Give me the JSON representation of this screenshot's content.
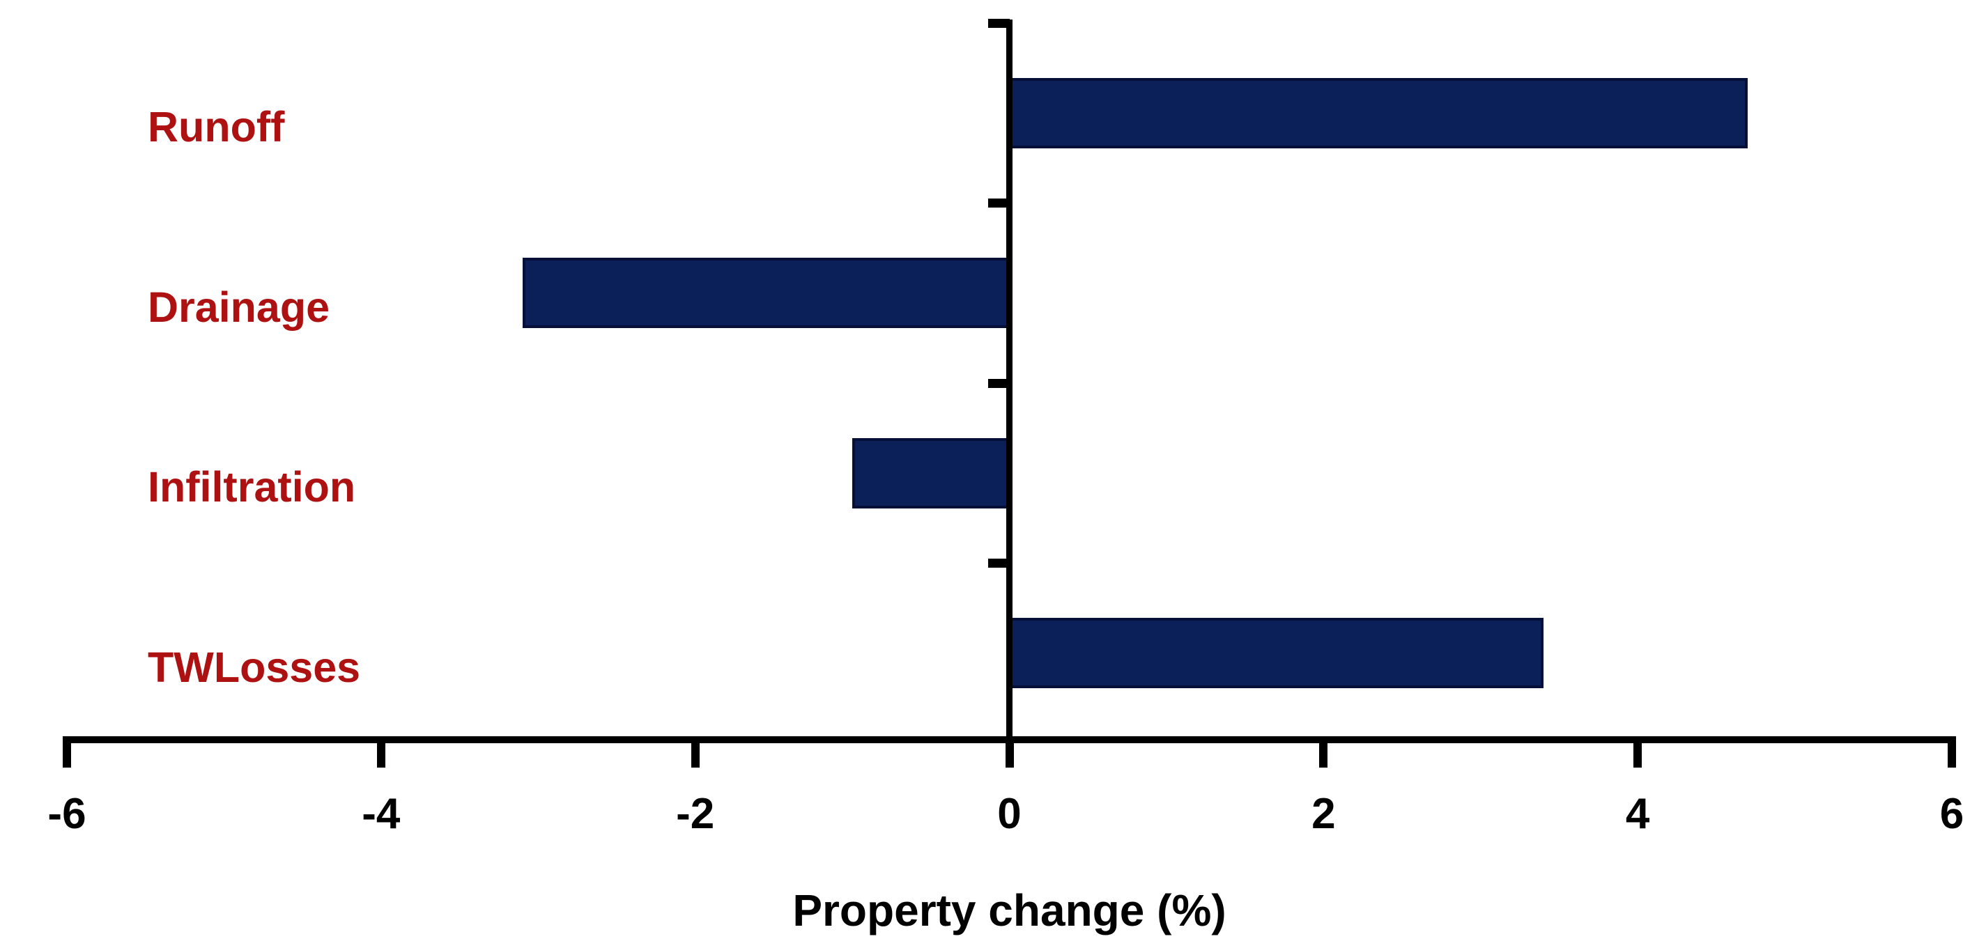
{
  "chart_data": {
    "type": "bar",
    "orientation": "horizontal",
    "title": "",
    "xlabel": "Property change (%)",
    "ylabel": "",
    "categories": [
      "Runoff",
      "Drainage",
      "Infiltration",
      "TWLosses"
    ],
    "values": [
      4.7,
      -3.1,
      -1.0,
      3.4
    ],
    "xlim": [
      -6,
      6
    ],
    "xticks": [
      -6,
      -4,
      -2,
      0,
      2,
      4,
      6
    ],
    "grid": false,
    "legend": false,
    "colors": {
      "bar_fill": "#0B2059",
      "bar_border": "#050F38",
      "category_label": "#AE1111",
      "axis": "#000000",
      "background": "#FFFFFF"
    }
  }
}
